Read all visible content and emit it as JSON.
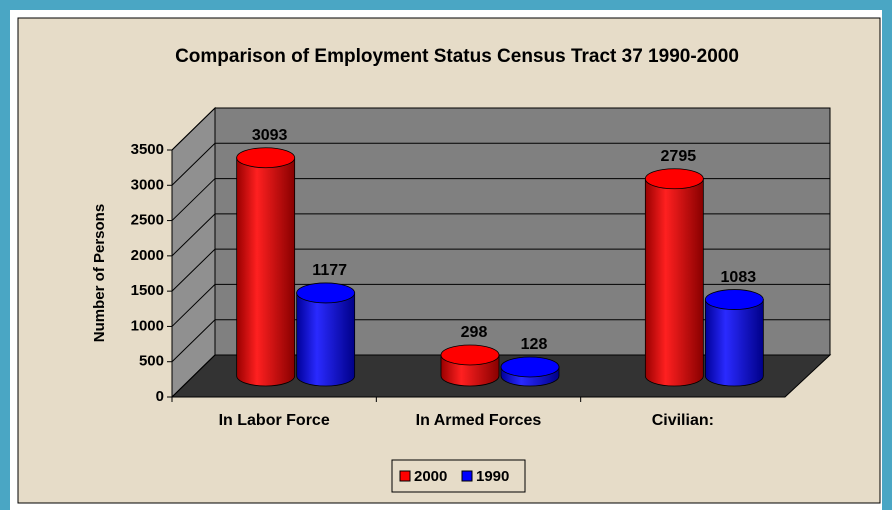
{
  "chart_data": {
    "type": "bar",
    "title": "Comparison of Employment Status Census Tract 37 1990-2000",
    "y_label": "Number of Persons",
    "categories": [
      "In Labor Force",
      "In Armed Forces",
      "Civilian:"
    ],
    "series": [
      {
        "name": "2000",
        "color": "#ff0000",
        "values": [
          3093,
          298,
          2795
        ]
      },
      {
        "name": "1990",
        "color": "#0000ff",
        "values": [
          1177,
          128,
          1083
        ]
      }
    ],
    "ylim": [
      0,
      3500
    ],
    "yticks": [
      0,
      500,
      1000,
      1500,
      2000,
      2500,
      3000,
      3500
    ],
    "grid": true,
    "legend": "bottom"
  }
}
